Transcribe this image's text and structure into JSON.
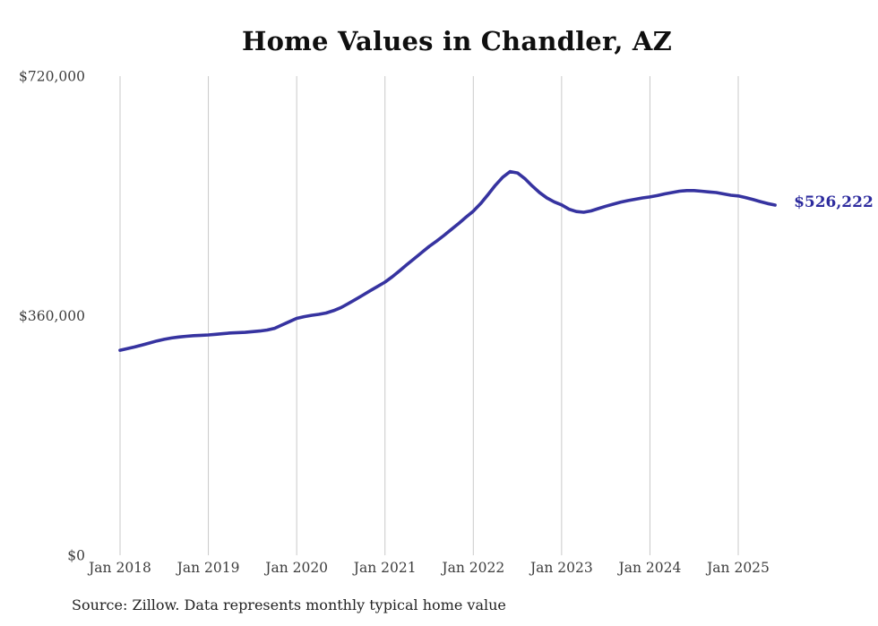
{
  "title": "Home Values in Chandler, AZ",
  "source_note": "Source: Zillow. Data represents monthly typical home value",
  "end_label": "$526,222",
  "colors": {
    "line": "#3633a0",
    "end_label_text": "#2d2b9e",
    "gridline": "#c9c9c9",
    "tick_text": "#3d3d3d",
    "title_text": "#0f0f0f",
    "source_text": "#222222",
    "background": "#ffffff"
  },
  "chart_data": {
    "type": "line",
    "title": "Home Values in Chandler, AZ",
    "xlabel": "",
    "ylabel": "",
    "ylim": [
      0,
      720000
    ],
    "grid": "vertical-only",
    "legend": "none",
    "x_start": "2018-01",
    "x_end": "2025-06",
    "interval": "monthly",
    "x_ticks": [
      {
        "label": "Jan 2018",
        "month_index": 0
      },
      {
        "label": "Jan 2019",
        "month_index": 12
      },
      {
        "label": "Jan 2020",
        "month_index": 24
      },
      {
        "label": "Jan 2021",
        "month_index": 36
      },
      {
        "label": "Jan 2022",
        "month_index": 48
      },
      {
        "label": "Jan 2023",
        "month_index": 60
      },
      {
        "label": "Jan 2024",
        "month_index": 72
      },
      {
        "label": "Jan 2025",
        "month_index": 84
      }
    ],
    "y_ticks": [
      {
        "label": "$720,000",
        "value": 720000
      },
      {
        "label": "$360,000",
        "value": 360000
      },
      {
        "label": "$0",
        "value": 0
      }
    ],
    "series": [
      {
        "name": "Typical home value",
        "values": [
          308000,
          310500,
          313000,
          316000,
          319000,
          322000,
          324500,
          326500,
          328000,
          329000,
          330000,
          330500,
          331000,
          332000,
          333000,
          334000,
          334500,
          335000,
          336000,
          337000,
          338500,
          341000,
          346000,
          351000,
          356000,
          358500,
          360500,
          362000,
          364000,
          367500,
          372000,
          378000,
          384500,
          391000,
          397500,
          404000,
          410500,
          418500,
          427500,
          437000,
          446000,
          455000,
          464000,
          472000,
          480500,
          489500,
          498500,
          508000,
          517000,
          528500,
          542000,
          556000,
          568000,
          576500,
          574500,
          566000,
          555000,
          545000,
          537000,
          531000,
          526500,
          520000,
          516500,
          515500,
          517500,
          521000,
          524500,
          527500,
          530500,
          533000,
          535000,
          537000,
          538500,
          540500,
          543000,
          545000,
          547000,
          548000,
          548000,
          547000,
          546000,
          545000,
          543000,
          541000,
          540000,
          537500,
          534500,
          531500,
          528500,
          526222
        ]
      }
    ],
    "end_label": {
      "text": "$526,222",
      "value": 526222
    }
  }
}
